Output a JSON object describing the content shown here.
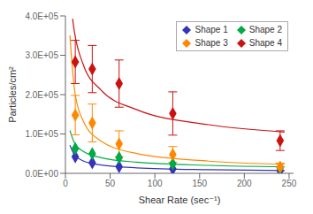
{
  "chart_data": {
    "type": "scatter",
    "xlabel": "Shear Rate (sec⁻¹)",
    "ylabel": "Particles/cm²",
    "x": [
      11,
      30,
      60,
      120,
      240
    ],
    "series": [
      {
        "name": "Shape 1",
        "color": "#3333bb",
        "values": [
          42000,
          27000,
          17000,
          11000,
          7000
        ],
        "errors": [
          0,
          0,
          0,
          0,
          0
        ],
        "fit": {
          "x": [
            5,
            10,
            20,
            40,
            80,
            160,
            245
          ],
          "values": [
            71535,
            47543,
            31598,
            21000,
            13957,
            9276,
            7216
          ]
        }
      },
      {
        "name": "Shape 2",
        "color": "#00aa44",
        "values": [
          63000,
          50000,
          40000,
          24000,
          14000
        ],
        "errors": [
          0,
          0,
          0,
          0,
          0
        ],
        "fit": {
          "x": [
            5,
            10,
            20,
            40,
            80,
            160,
            245
          ],
          "values": [
            108788,
            77683,
            55471,
            39610,
            28284,
            20197,
            16421
          ]
        }
      },
      {
        "name": "Shape 3",
        "color": "#ff8800",
        "values": [
          148000,
          128000,
          75000,
          48000,
          16000
        ],
        "errors": [
          50000,
          48000,
          33000,
          20000,
          10000
        ],
        "fit": {
          "x": [
            5,
            10,
            20,
            40,
            80,
            160,
            245
          ],
          "values": [
            350636,
            215741,
            132742,
            81674,
            50253,
            30920,
            22939
          ]
        }
      },
      {
        "name": "Shape 4",
        "color": "#cc1111",
        "values": [
          283000,
          265000,
          228000,
          152000,
          83000
        ],
        "errors": [
          55000,
          60000,
          60000,
          55000,
          25000
        ],
        "fit": {
          "x": [
            8,
            10,
            20,
            40,
            80,
            160,
            245
          ],
          "values": [
            393005,
            360549,
            275855,
            211056,
            161478,
            123546,
            104797
          ]
        }
      }
    ],
    "xlim": [
      0,
      255
    ],
    "xticks": [
      0,
      50,
      100,
      150,
      200,
      250
    ],
    "ylim": [
      0,
      400000
    ],
    "yticks": [
      {
        "value": 0,
        "label": "0.0E+00"
      },
      {
        "value": 100000,
        "label": "1.0E+05"
      },
      {
        "value": 200000,
        "label": "2.0E+05"
      },
      {
        "value": 300000,
        "label": "3.0E+05"
      },
      {
        "value": 400000,
        "label": "4.0E+05"
      }
    ],
    "marker": "diamond",
    "legend": "upper right",
    "grid": false
  }
}
